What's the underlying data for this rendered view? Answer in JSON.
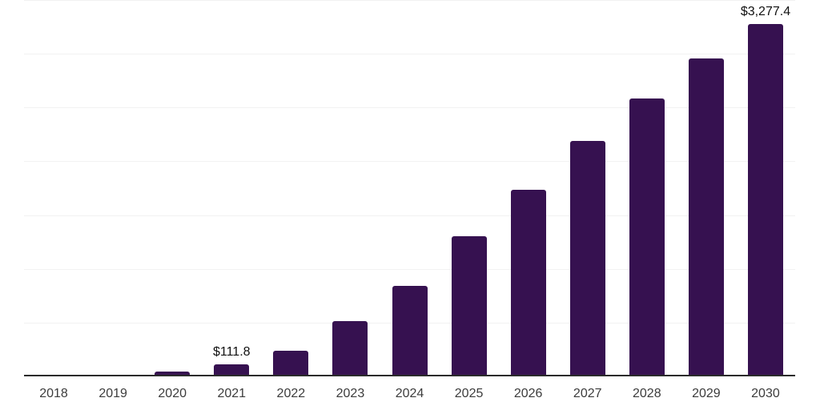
{
  "chart_data": {
    "type": "bar",
    "title": "",
    "xlabel": "",
    "ylabel": "",
    "categories": [
      "2018",
      "2019",
      "2020",
      "2021",
      "2022",
      "2023",
      "2024",
      "2025",
      "2026",
      "2027",
      "2028",
      "2029",
      "2030"
    ],
    "values": [
      0.5,
      8,
      48,
      111.8,
      235,
      515,
      845,
      1300,
      1735,
      2190,
      2585,
      2960,
      3277.4
    ],
    "data_labels": {
      "2021": "$111.8",
      "2030": "$3,277.4"
    },
    "ylim": [
      0,
      3500
    ],
    "gridline_interval": 500,
    "grid": "horizontal",
    "legend": "none",
    "colors": {
      "bar": "#361150",
      "axis_line": "#2b2b2b",
      "gridline": "#f2f2f2",
      "tick_label": "#3c3c3c",
      "value_label": "#111111",
      "background": "#ffffff"
    }
  }
}
